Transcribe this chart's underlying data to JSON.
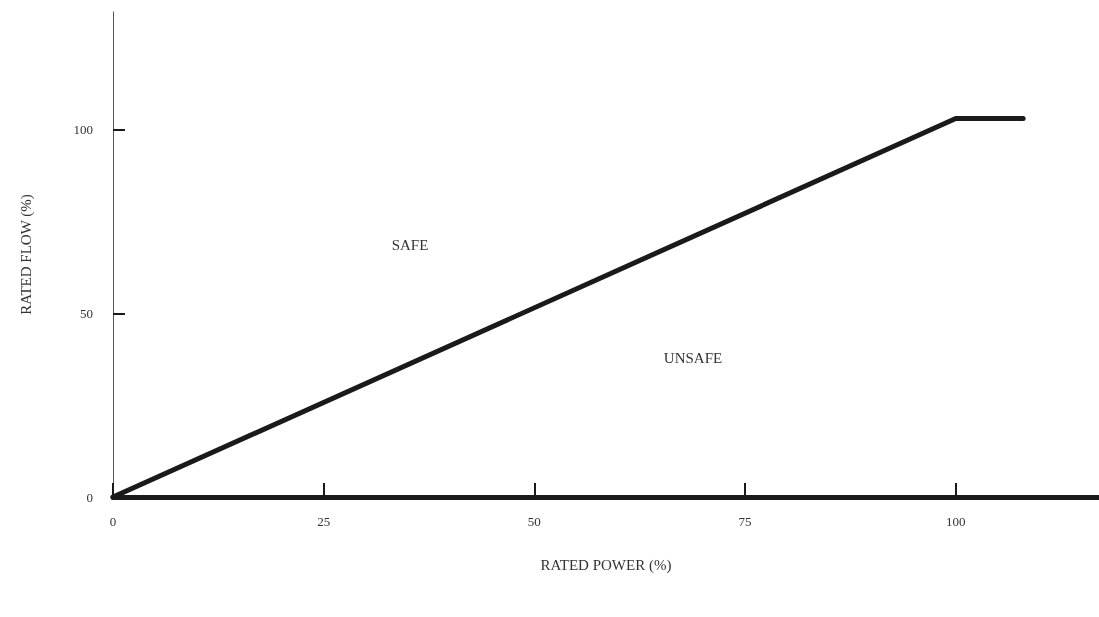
{
  "chart_data": {
    "type": "line",
    "xlabel": "RATED POWER (%)",
    "ylabel": "RATED FLOW (%)",
    "series": [
      {
        "color": "#1a1a1a",
        "x": [
          0,
          100,
          108
        ],
        "values": [
          0,
          103,
          103
        ]
      }
    ],
    "xlim": [
      0,
      117
    ],
    "ylim": [
      0,
      132
    ],
    "xticks": [
      0,
      25,
      50,
      75,
      100
    ],
    "yticks": [
      0,
      50,
      100
    ],
    "annotations": [
      "SAFE",
      "UNSAFE"
    ],
    "grid": false,
    "marker": "none",
    "line_style": "solid"
  }
}
